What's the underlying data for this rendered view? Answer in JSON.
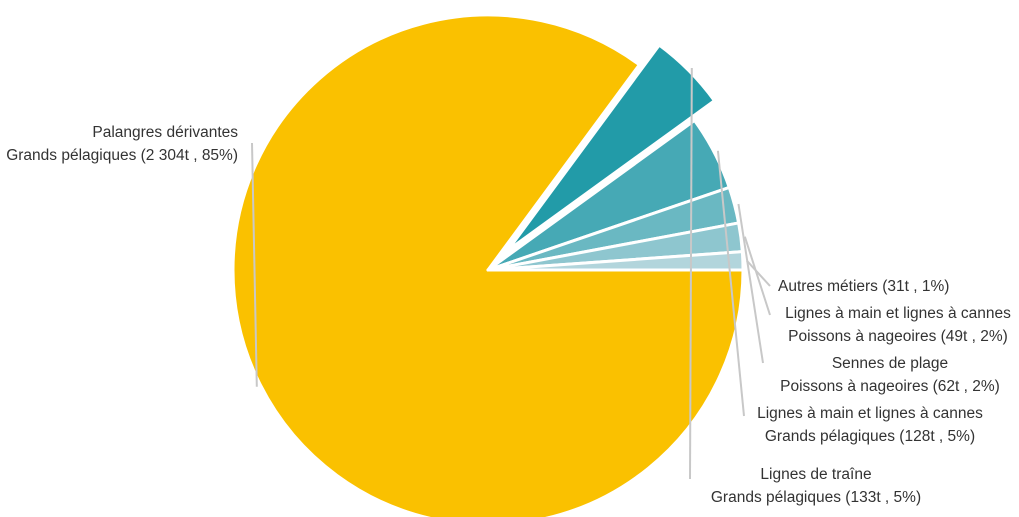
{
  "chart_data": {
    "type": "pie",
    "title": "",
    "colors": [
      "#fac100",
      "#229ba8",
      "#46a9b5",
      "#6ab8c2",
      "#8ec6cf",
      "#b2d5dc"
    ],
    "slices": [
      {
        "line1": "Palangres dérivantes",
        "line2": "Grands pélagiques (2 304t , 85%)",
        "value": 2304,
        "percent": 85
      },
      {
        "line1": "Lignes de traîne",
        "line2": "Grands pélagiques (133t , 5%)",
        "value": 133,
        "percent": 5
      },
      {
        "line1": "Lignes à main et lignes à cannes",
        "line2": "Grands pélagiques (128t , 5%)",
        "value": 128,
        "percent": 5
      },
      {
        "line1": "Sennes de plage",
        "line2": "Poissons à nageoires (62t , 2%)",
        "value": 62,
        "percent": 2
      },
      {
        "line1": "Lignes à main et lignes à cannes",
        "line2": "Poissons à nageoires (49t , 2%)",
        "value": 49,
        "percent": 2
      },
      {
        "line1": "Autres métiers (31t , 1%)",
        "line2": "",
        "value": 31,
        "percent": 1
      }
    ]
  }
}
